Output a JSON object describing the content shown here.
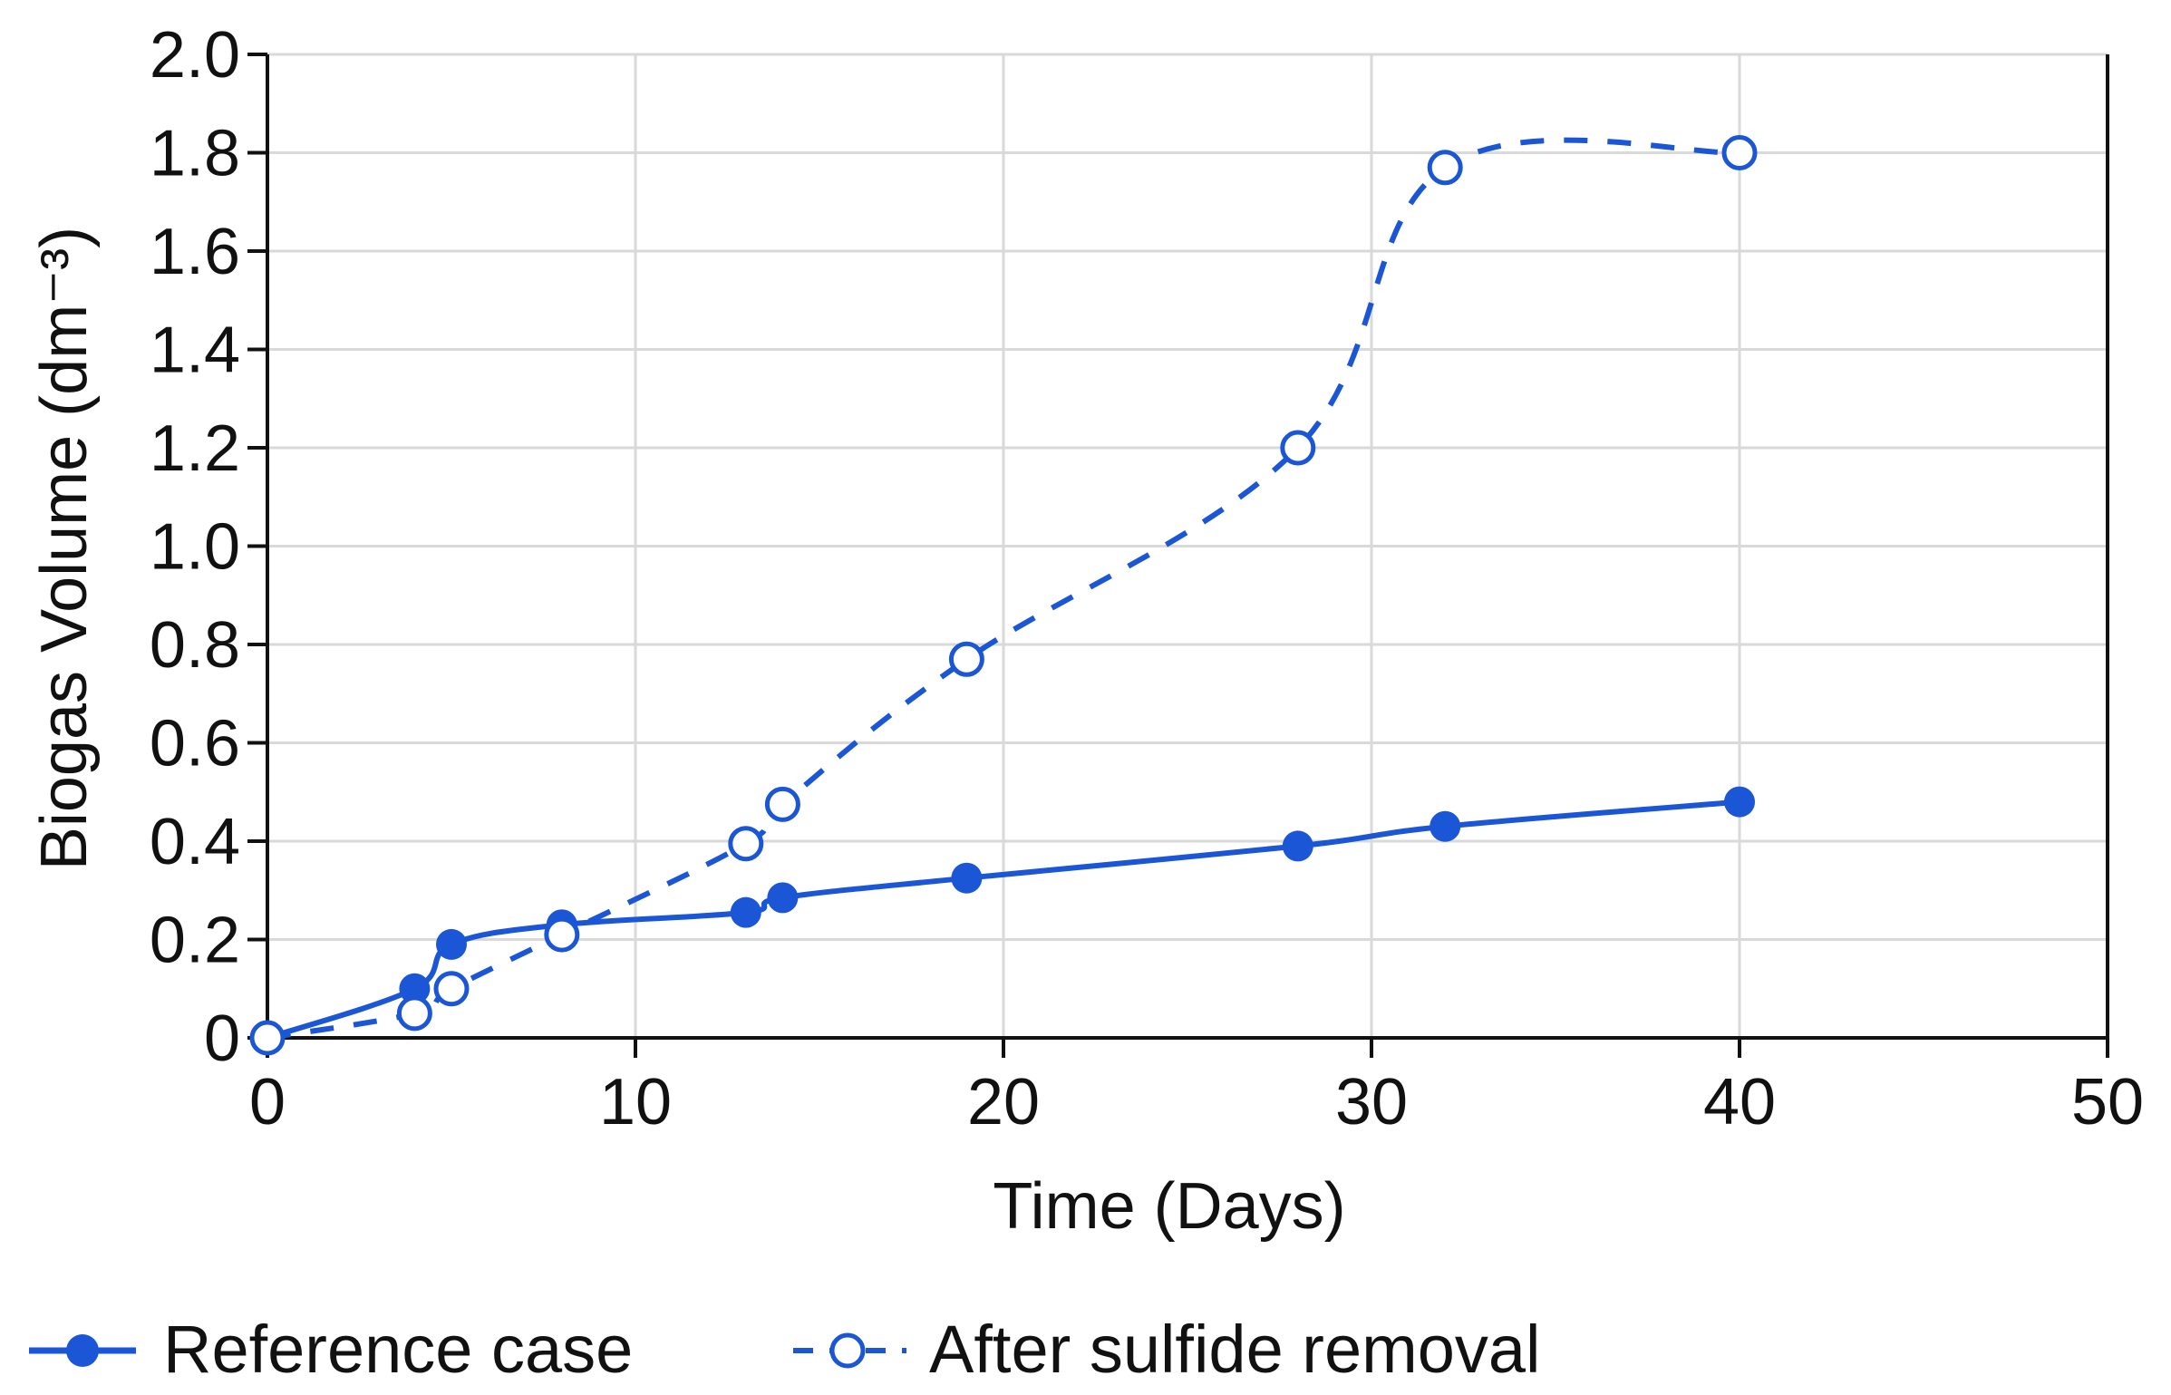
{
  "chart_data": {
    "type": "line",
    "title": "",
    "xlabel": "Time (Days)",
    "ylabel": "Biogas Volume (dm⁻³)",
    "xlim": [
      0,
      50
    ],
    "ylim": [
      0,
      2.0
    ],
    "xticks": [
      "0",
      "10",
      "20",
      "30",
      "40",
      "50"
    ],
    "yticks": [
      "0",
      "0.2",
      "0.4",
      "0.6",
      "0.8",
      "1.0",
      "1.2",
      "1.4",
      "1.6",
      "1.8",
      "2.0"
    ],
    "grid": true,
    "legend_position": "bottom",
    "series": [
      {
        "name": "Reference case",
        "style": "solid",
        "marker": "filled-circle",
        "color": "#1a56d6",
        "x": [
          0,
          4,
          5,
          8,
          13,
          14,
          19,
          28,
          32,
          40
        ],
        "y": [
          0,
          0.1,
          0.19,
          0.23,
          0.255,
          0.285,
          0.325,
          0.39,
          0.43,
          0.48
        ]
      },
      {
        "name": "After sulfide removal",
        "style": "dashed",
        "marker": "open-circle",
        "color": "#1a56d6",
        "x": [
          0,
          4,
          5,
          8,
          13,
          14,
          19,
          28,
          32,
          40
        ],
        "y": [
          0,
          0.05,
          0.1,
          0.21,
          0.395,
          0.475,
          0.77,
          1.2,
          1.77,
          1.8
        ]
      }
    ]
  }
}
